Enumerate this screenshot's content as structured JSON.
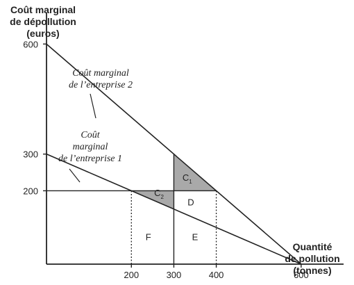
{
  "chart_data": {
    "type": "line",
    "ylabel_lines": [
      "Coût marginal",
      "de dépollution",
      "(euros)"
    ],
    "xlabel_lines": [
      "Quantité",
      "de pollution",
      "(tonnes)"
    ],
    "xlim": [
      0,
      700
    ],
    "ylim": [
      0,
      720
    ],
    "xticks": [
      {
        "value": 200,
        "label": "200"
      },
      {
        "value": 300,
        "label": "300"
      },
      {
        "value": 400,
        "label": "400"
      },
      {
        "value": 600,
        "label": "600"
      }
    ],
    "yticks": [
      {
        "value": 200,
        "label": "200"
      },
      {
        "value": 300,
        "label": "300"
      },
      {
        "value": 600,
        "label": "600"
      }
    ],
    "series": [
      {
        "name": "Coût marginal de l'entreprise 2",
        "label_lines": [
          "Coût marginal",
          "de l’entreprise 2"
        ],
        "points": [
          [
            0,
            600
          ],
          [
            600,
            0
          ]
        ]
      },
      {
        "name": "Coût marginal de l'entreprise 1",
        "label_lines": [
          "Coût",
          "marginal",
          "de l’entreprise 1"
        ],
        "points": [
          [
            0,
            300
          ],
          [
            600,
            0
          ]
        ]
      }
    ],
    "reference_lines": [
      {
        "orientation": "horizontal",
        "y": 200,
        "from": 0,
        "to": 400,
        "style": "solid"
      },
      {
        "orientation": "vertical",
        "x": 300,
        "from": 0,
        "to": 300,
        "style": "solid"
      },
      {
        "orientation": "vertical",
        "x": 200,
        "from": 0,
        "to": 200,
        "style": "dotted"
      },
      {
        "orientation": "vertical",
        "x": 400,
        "from": 0,
        "to": 200,
        "style": "dotted"
      }
    ],
    "shaded_regions": [
      {
        "label": "C",
        "subscript": "1",
        "polygon": [
          [
            300,
            300
          ],
          [
            300,
            200
          ],
          [
            400,
            200
          ]
        ]
      },
      {
        "label": "C",
        "subscript": "2",
        "polygon": [
          [
            200,
            200
          ],
          [
            300,
            200
          ],
          [
            300,
            150
          ]
        ]
      }
    ],
    "region_labels": [
      {
        "label": "D",
        "at": [
          340,
          170
        ]
      },
      {
        "label": "E",
        "at": [
          350,
          75
        ]
      },
      {
        "label": "F",
        "at": [
          240,
          75
        ]
      }
    ],
    "colors": {
      "axis": "#222222",
      "shade": "#a9a9a9"
    }
  }
}
